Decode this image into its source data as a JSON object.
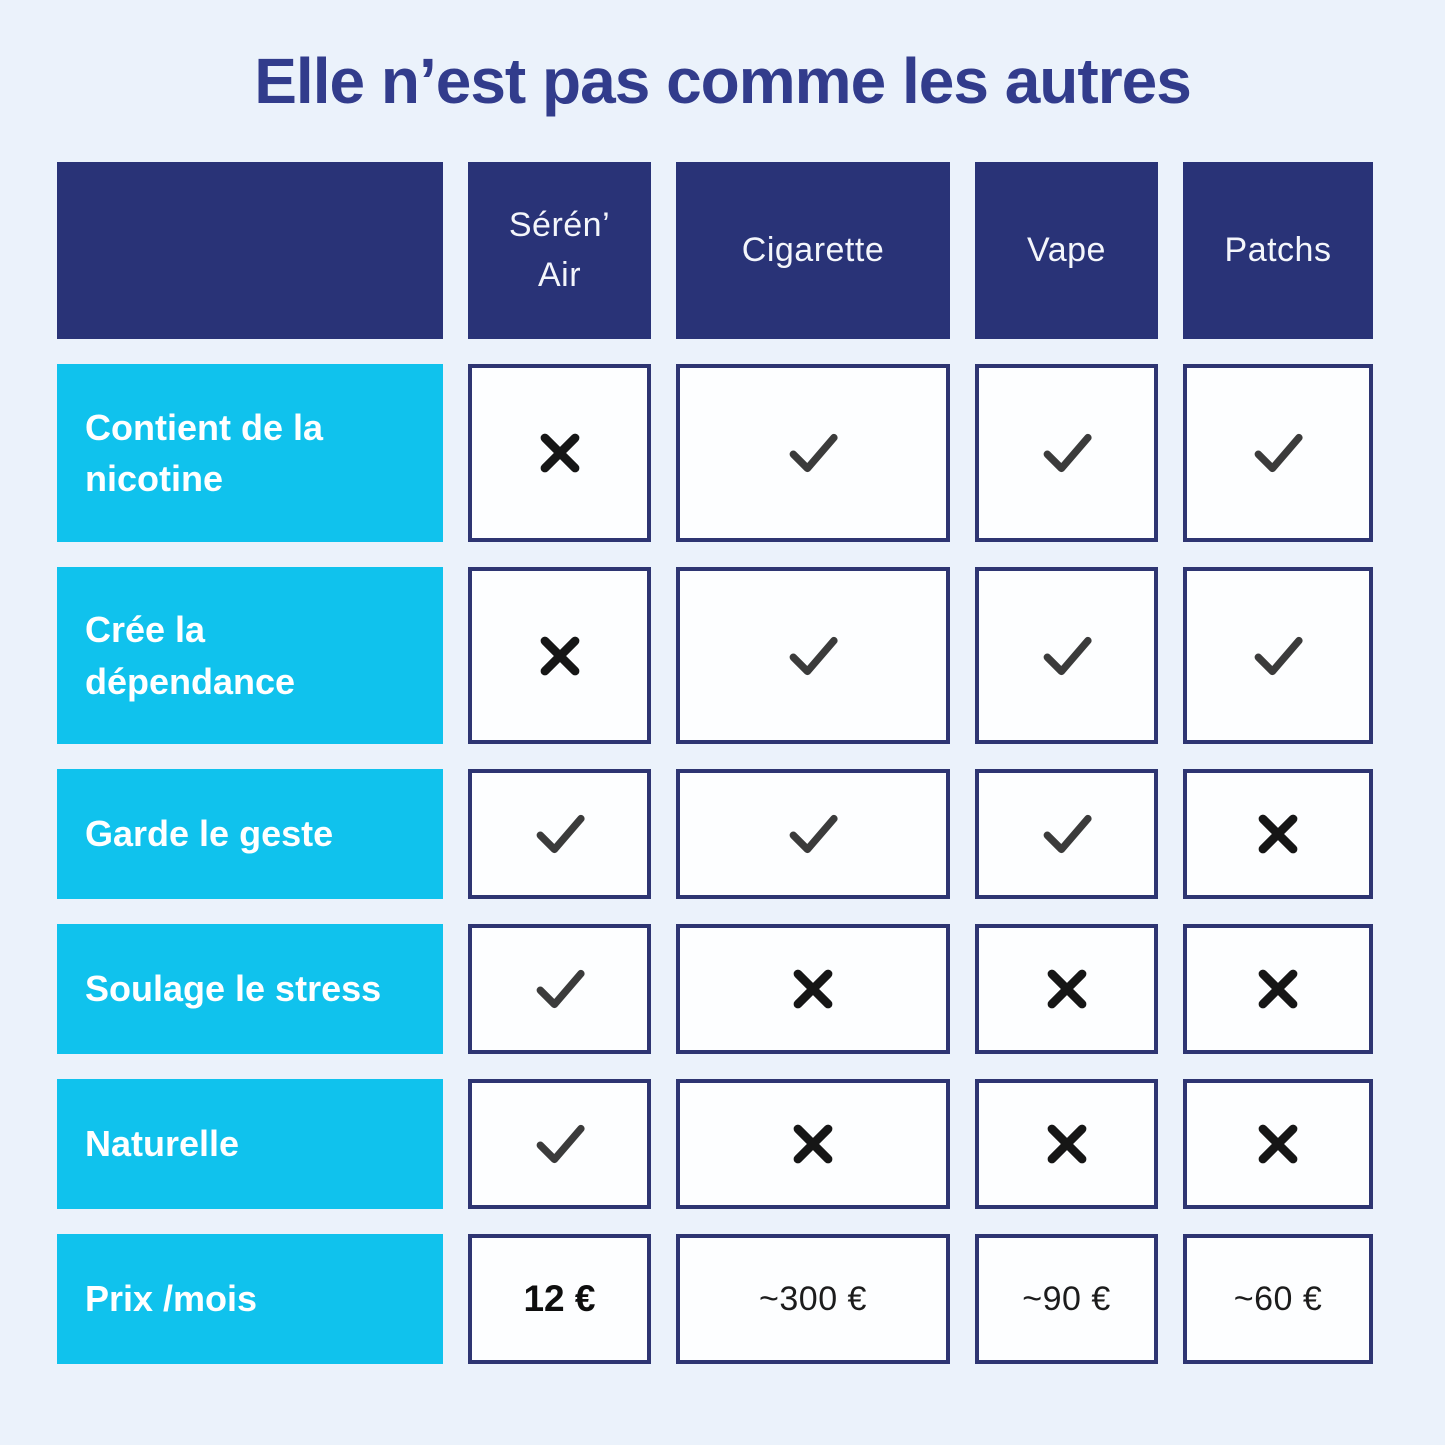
{
  "title": {
    "text": "Elle n’est pas comme les autres"
  },
  "colors": {
    "background": "#ebf2fb",
    "header_navy": "#293377",
    "cell_border_navy": "#2e3572",
    "label_cyan": "#10c2ed",
    "title_navy": "#323c8c",
    "check_mark": "#3b3b3b",
    "cross_mark": "#161616"
  },
  "table": {
    "columns": [
      {
        "label": "Sérén’ Air"
      },
      {
        "label": "Cigarette"
      },
      {
        "label": "Vape"
      },
      {
        "label": "Patchs"
      }
    ],
    "rows": [
      {
        "label": "Contient de la nicotine",
        "type": "icons",
        "values": [
          "cross",
          "check",
          "check",
          "check"
        ]
      },
      {
        "label": "Crée la dépendance",
        "type": "icons",
        "values": [
          "cross",
          "check",
          "check",
          "check"
        ]
      },
      {
        "label": "Garde le geste",
        "type": "icons",
        "values": [
          "check",
          "check",
          "check",
          "cross"
        ]
      },
      {
        "label": "Soulage le stress",
        "type": "icons",
        "values": [
          "check",
          "cross",
          "cross",
          "cross"
        ]
      },
      {
        "label": "Naturelle",
        "type": "icons",
        "values": [
          "check",
          "cross",
          "cross",
          "cross"
        ]
      },
      {
        "label": "Prix /mois",
        "type": "prices",
        "values": [
          "12 €",
          "~300 €",
          "~90 €",
          "~60 €"
        ]
      }
    ]
  }
}
